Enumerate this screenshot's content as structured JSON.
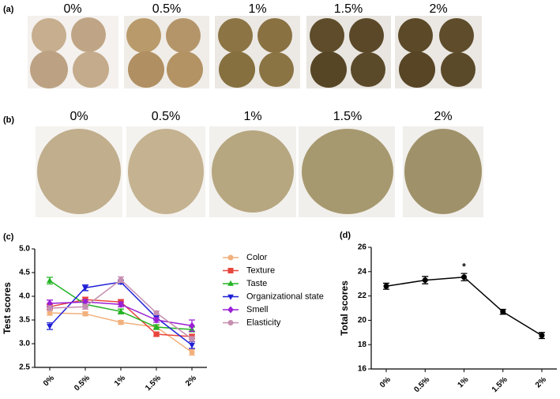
{
  "panels": {
    "a": {
      "label": "(a)",
      "captions": [
        "0%",
        "0.5%",
        "1%",
        "1.5%",
        "2%"
      ]
    },
    "b": {
      "label": "(b)",
      "captions": [
        "0%",
        "0.5%",
        "1%",
        "1.5%",
        "2%"
      ]
    }
  },
  "chart_data": [
    {
      "type": "line",
      "panel_label": "(c)",
      "y_label": "Test scores",
      "categories": [
        "0%",
        "0.5%",
        "1%",
        "1.5%",
        "2%"
      ],
      "ylim": [
        2.5,
        5.0
      ],
      "yticks": [
        2.5,
        {
          "value": 3,
          "label": "3.0"
        },
        3.5,
        {
          "value": 4,
          "label": "4.0"
        },
        4.5,
        {
          "value": 5,
          "label": "5.0"
        }
      ],
      "legend": "right",
      "series": [
        {
          "name": "Color",
          "color": "#f2b07c",
          "marker": "circle",
          "values": [
            3.65,
            3.63,
            3.45,
            3.35,
            2.82
          ],
          "errors": [
            0.05,
            0.04,
            0.04,
            0.04,
            0.06
          ]
        },
        {
          "name": "Texture",
          "color": "#e8453c",
          "marker": "square",
          "values": [
            3.78,
            3.93,
            3.88,
            3.2,
            3.15
          ],
          "errors": [
            0.05,
            0.05,
            0.05,
            0.04,
            0.05
          ]
        },
        {
          "name": "Taste",
          "color": "#22b322",
          "marker": "triangle",
          "values": [
            4.33,
            3.83,
            3.68,
            3.35,
            3.3
          ],
          "errors": [
            0.07,
            0.05,
            0.05,
            0.05,
            0.05
          ]
        },
        {
          "name": "Organizational state",
          "color": "#1f1fd6",
          "marker": "down-triangle",
          "values": [
            3.37,
            4.18,
            4.3,
            3.55,
            2.97
          ],
          "errors": [
            0.07,
            0.06,
            0.04,
            0.05,
            0.07
          ]
        },
        {
          "name": "Smell",
          "color": "#9b1fd6",
          "marker": "diamond",
          "values": [
            3.85,
            3.88,
            3.83,
            3.5,
            3.38
          ],
          "errors": [
            0.07,
            0.05,
            0.05,
            0.05,
            0.12
          ]
        },
        {
          "name": "Elasticity",
          "color": "#c58fb0",
          "marker": "circle",
          "values": [
            3.75,
            3.78,
            4.35,
            3.65,
            3.1
          ],
          "errors": [
            0.05,
            0.05,
            0.06,
            0.04,
            0.05
          ]
        }
      ]
    },
    {
      "type": "line",
      "panel_label": "(d)",
      "y_label": "Total scores",
      "categories": [
        "0%",
        "0.5%",
        "1%",
        "1.5%",
        "2%"
      ],
      "ylim": [
        16,
        26
      ],
      "yticks": [
        16,
        18,
        20,
        22,
        24,
        26
      ],
      "annotation": {
        "text": "*",
        "x": "1%"
      },
      "series": [
        {
          "color": "#000000",
          "marker": "circle",
          "values": [
            22.8,
            23.3,
            23.55,
            20.7,
            18.75
          ],
          "errors": [
            0.25,
            0.3,
            0.3,
            0.2,
            0.25
          ]
        }
      ]
    }
  ]
}
